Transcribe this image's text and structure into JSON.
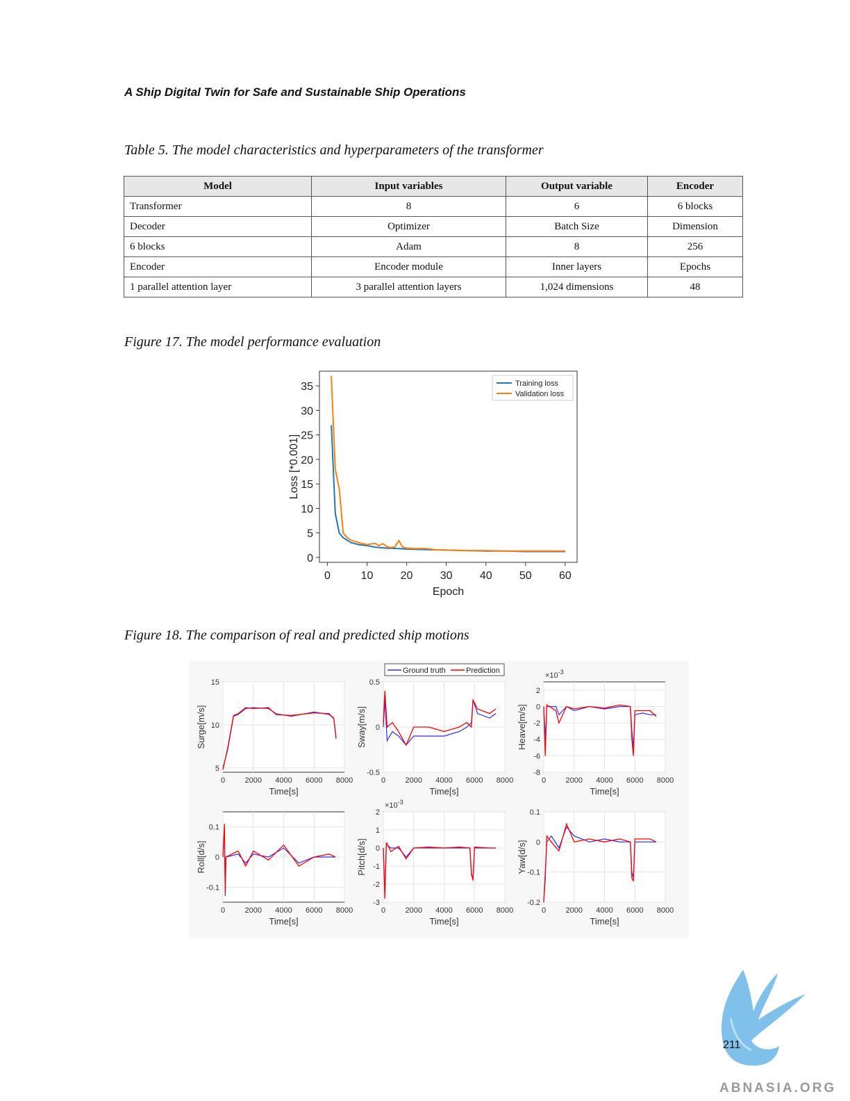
{
  "running_head": "A Ship Digital Twin for Safe and Sustainable Ship Operations",
  "table5": {
    "caption": "Table 5. The model characteristics and hyperparameters of the transformer",
    "headers": [
      "Model",
      "Input variables",
      "Output variable",
      "Encoder"
    ],
    "rows": [
      [
        "Transformer",
        "8",
        "6",
        "6 blocks"
      ],
      [
        "Decoder",
        "Optimizer",
        "Batch Size",
        "Dimension"
      ],
      [
        "6 blocks",
        "Adam",
        "8",
        "256"
      ],
      [
        "Encoder",
        "Encoder module",
        "Inner layers",
        "Epochs"
      ],
      [
        "1 parallel attention layer",
        "3 parallel attention layers",
        "1,024 dimensions",
        "48"
      ]
    ]
  },
  "figure17": {
    "caption": "Figure 17. The model performance evaluation"
  },
  "figure18": {
    "caption": "Figure 18. The comparison of real and predicted ship motions"
  },
  "page_number": "211",
  "watermark": "ABNASIA.ORG",
  "colors": {
    "training": "#1f77b4",
    "validation": "#ff7f0e",
    "ground_truth": "#2b2bff",
    "prediction": "#ff0000"
  },
  "chart_data": [
    {
      "type": "line",
      "xlabel": "Epoch",
      "ylabel": "Loss [*0.001]",
      "xlim": [
        -2,
        63
      ],
      "ylim": [
        -1,
        38
      ],
      "xticks": [
        0,
        10,
        20,
        30,
        40,
        50,
        60
      ],
      "yticks": [
        0,
        5,
        10,
        15,
        20,
        25,
        30,
        35
      ],
      "grid": false,
      "legend": "top-right",
      "series": [
        {
          "name": "Training loss",
          "x": [
            1,
            2,
            3,
            4,
            5,
            6,
            8,
            10,
            12,
            15,
            18,
            20,
            25,
            30,
            35,
            40,
            45,
            50,
            55,
            60
          ],
          "y": [
            27,
            9,
            5,
            4,
            3.5,
            3,
            2.6,
            2.4,
            2.1,
            1.9,
            1.8,
            1.7,
            1.6,
            1.5,
            1.4,
            1.3,
            1.3,
            1.2,
            1.2,
            1.2
          ]
        },
        {
          "name": "Validation loss",
          "x": [
            1,
            2,
            3,
            4,
            5,
            6,
            8,
            10,
            12,
            13,
            14,
            15,
            16,
            17,
            18,
            19,
            20,
            22,
            25,
            27,
            30,
            35,
            40,
            45,
            50,
            55,
            60
          ],
          "y": [
            37,
            18,
            14,
            5,
            4,
            3.5,
            3,
            2.6,
            2.9,
            2.4,
            2.8,
            2.2,
            2.0,
            2.1,
            3.4,
            2.1,
            1.9,
            1.8,
            1.8,
            1.6,
            1.5,
            1.4,
            1.4,
            1.3,
            1.3,
            1.3,
            1.3
          ]
        }
      ]
    },
    {
      "type": "line",
      "legend": "top",
      "legend_entries": [
        "Ground truth",
        "Prediction"
      ],
      "panels": [
        {
          "ylabel": "Surge[m/s]",
          "xlabel": "Time[s]",
          "xlim": [
            0,
            8000
          ],
          "ylim": [
            4.5,
            15
          ],
          "xticks": [
            "0",
            "2000",
            "4000",
            "6000",
            "8000"
          ],
          "yticks": [
            "5",
            "10",
            "15"
          ],
          "ytick_vals": [
            5,
            10,
            15
          ],
          "multiplier": "",
          "gt": [
            [
              0,
              5
            ],
            [
              300,
              7
            ],
            [
              700,
              11
            ],
            [
              1000,
              11.2
            ],
            [
              1500,
              11.9
            ],
            [
              2000,
              12
            ],
            [
              3000,
              11.9
            ],
            [
              3500,
              11.3
            ],
            [
              4500,
              11
            ],
            [
              6000,
              11.5
            ],
            [
              7000,
              11.2
            ],
            [
              7300,
              10.8
            ],
            [
              7450,
              8.5
            ]
          ],
          "pred": [
            [
              0,
              4.8
            ],
            [
              300,
              7.2
            ],
            [
              700,
              11.1
            ],
            [
              1000,
              11.3
            ],
            [
              1500,
              12
            ],
            [
              2000,
              11.9
            ],
            [
              3000,
              12
            ],
            [
              3500,
              11.2
            ],
            [
              4500,
              11.1
            ],
            [
              6000,
              11.4
            ],
            [
              7000,
              11.3
            ],
            [
              7300,
              10.7
            ],
            [
              7450,
              8.4
            ]
          ]
        },
        {
          "ylabel": "Sway[m/s]",
          "xlabel": "Time[s]",
          "xlim": [
            0,
            8000
          ],
          "ylim": [
            -0.5,
            0.5
          ],
          "xticks": [
            "0",
            "2000",
            "4000",
            "6000",
            "8000"
          ],
          "yticks": [
            "-0.5",
            "0",
            "0.5"
          ],
          "ytick_vals": [
            -0.5,
            0,
            0.5
          ],
          "multiplier": "",
          "gt": [
            [
              0,
              0
            ],
            [
              100,
              0.3
            ],
            [
              250,
              -0.15
            ],
            [
              600,
              -0.05
            ],
            [
              1000,
              -0.1
            ],
            [
              1500,
              -0.2
            ],
            [
              2000,
              -0.1
            ],
            [
              3000,
              -0.1
            ],
            [
              4000,
              -0.1
            ],
            [
              5000,
              -0.05
            ],
            [
              5500,
              0
            ],
            [
              5800,
              0.05
            ],
            [
              5900,
              0.3
            ],
            [
              6200,
              0.15
            ],
            [
              7000,
              0.1
            ],
            [
              7400,
              0.15
            ]
          ],
          "pred": [
            [
              0,
              0.05
            ],
            [
              100,
              0.4
            ],
            [
              250,
              0
            ],
            [
              600,
              0.05
            ],
            [
              1000,
              -0.05
            ],
            [
              1500,
              -0.2
            ],
            [
              2000,
              0
            ],
            [
              3000,
              0
            ],
            [
              4000,
              -0.05
            ],
            [
              5000,
              0
            ],
            [
              5500,
              0.05
            ],
            [
              5800,
              0
            ],
            [
              5900,
              0.3
            ],
            [
              6200,
              0.2
            ],
            [
              7000,
              0.15
            ],
            [
              7400,
              0.2
            ]
          ]
        },
        {
          "ylabel": "Heave[m/s]",
          "xlabel": "Time[s]",
          "xlim": [
            0,
            8000
          ],
          "ylim": [
            -8,
            3
          ],
          "xticks": [
            "0",
            "2000",
            "4000",
            "6000",
            "8000"
          ],
          "yticks": [
            "-8",
            "-6",
            "-4",
            "-2",
            "0",
            "2"
          ],
          "ytick_vals": [
            -8,
            -6,
            -4,
            -2,
            0,
            2
          ],
          "multiplier": "10-3",
          "gt": [
            [
              0,
              0
            ],
            [
              100,
              -4
            ],
            [
              200,
              0
            ],
            [
              800,
              0
            ],
            [
              1000,
              -1
            ],
            [
              1500,
              0
            ],
            [
              2000,
              -0.5
            ],
            [
              3000,
              0
            ],
            [
              4000,
              -0.3
            ],
            [
              5000,
              0
            ],
            [
              5700,
              0
            ],
            [
              5800,
              -3
            ],
            [
              5900,
              -5
            ],
            [
              6000,
              -1
            ],
            [
              6500,
              -0.8
            ],
            [
              7000,
              -1
            ],
            [
              7400,
              -1
            ]
          ],
          "pred": [
            [
              0,
              0
            ],
            [
              100,
              -6
            ],
            [
              200,
              0.2
            ],
            [
              800,
              -0.5
            ],
            [
              1000,
              -2
            ],
            [
              1500,
              0
            ],
            [
              2000,
              -0.3
            ],
            [
              3000,
              0
            ],
            [
              4000,
              -0.2
            ],
            [
              5000,
              0.2
            ],
            [
              5700,
              0
            ],
            [
              5800,
              -4
            ],
            [
              5900,
              -6
            ],
            [
              6000,
              -0.5
            ],
            [
              6500,
              -0.5
            ],
            [
              7000,
              -0.5
            ],
            [
              7400,
              -1.2
            ]
          ]
        },
        {
          "ylabel": "Roll[d/s]",
          "xlabel": "Time[s]",
          "xlim": [
            0,
            8000
          ],
          "ylim": [
            -0.15,
            0.15
          ],
          "xticks": [
            "0",
            "2000",
            "4000",
            "6000",
            "8000"
          ],
          "yticks": [
            "-0.1",
            "0",
            "0.1"
          ],
          "ytick_vals": [
            -0.1,
            0,
            0.1
          ],
          "multiplier": "",
          "gt": [
            [
              0,
              0
            ],
            [
              100,
              0.1
            ],
            [
              150,
              -0.13
            ],
            [
              200,
              0
            ],
            [
              1000,
              0.01
            ],
            [
              1500,
              -0.02
            ],
            [
              2000,
              0.01
            ],
            [
              3000,
              0
            ],
            [
              4000,
              0.03
            ],
            [
              5000,
              -0.02
            ],
            [
              6000,
              0
            ],
            [
              7000,
              0
            ],
            [
              7400,
              0
            ]
          ],
          "pred": [
            [
              0,
              0
            ],
            [
              100,
              0.11
            ],
            [
              150,
              -0.12
            ],
            [
              200,
              0
            ],
            [
              1000,
              0.02
            ],
            [
              1500,
              -0.03
            ],
            [
              2000,
              0.02
            ],
            [
              3000,
              -0.01
            ],
            [
              4000,
              0.04
            ],
            [
              5000,
              -0.03
            ],
            [
              6000,
              0
            ],
            [
              7000,
              0.01
            ],
            [
              7400,
              0
            ]
          ]
        },
        {
          "ylabel": "Pitch[d/s]",
          "xlabel": "Time[s]",
          "xlim": [
            0,
            8000
          ],
          "ylim": [
            -3,
            2
          ],
          "xticks": [
            "0",
            "2000",
            "4000",
            "6000",
            "8000"
          ],
          "yticks": [
            "-3",
            "-2",
            "-1",
            "0",
            "1",
            "2"
          ],
          "ytick_vals": [
            -3,
            -2,
            -1,
            0,
            1,
            2
          ],
          "multiplier": "10-3",
          "gt": [
            [
              0,
              0
            ],
            [
              100,
              -2.5
            ],
            [
              200,
              0.2
            ],
            [
              500,
              0
            ],
            [
              1000,
              0
            ],
            [
              1500,
              -0.5
            ],
            [
              2000,
              0
            ],
            [
              3000,
              0
            ],
            [
              4000,
              0
            ],
            [
              5000,
              0
            ],
            [
              5700,
              0
            ],
            [
              5800,
              -1.5
            ],
            [
              5900,
              -1.7
            ],
            [
              6000,
              0
            ],
            [
              7000,
              0
            ],
            [
              7400,
              0
            ]
          ],
          "pred": [
            [
              0,
              0
            ],
            [
              100,
              -2.8
            ],
            [
              200,
              0.3
            ],
            [
              500,
              -0.2
            ],
            [
              1000,
              0.1
            ],
            [
              1500,
              -0.6
            ],
            [
              2000,
              0
            ],
            [
              3000,
              0.05
            ],
            [
              4000,
              0
            ],
            [
              5000,
              0.05
            ],
            [
              5700,
              0
            ],
            [
              5800,
              -1.4
            ],
            [
              5900,
              -1.8
            ],
            [
              6000,
              0.05
            ],
            [
              7000,
              0
            ],
            [
              7400,
              0
            ]
          ]
        },
        {
          "ylabel": "Yaw[d/s]",
          "xlabel": "Time[s]",
          "xlim": [
            0,
            8000
          ],
          "ylim": [
            -0.2,
            0.1
          ],
          "xticks": [
            "0",
            "2000",
            "4000",
            "6000",
            "8000"
          ],
          "yticks": [
            "-0.2",
            "-0.1",
            "0",
            "0.1"
          ],
          "ytick_vals": [
            -0.2,
            -0.1,
            0,
            0.1
          ],
          "multiplier": "",
          "gt": [
            [
              0,
              -0.2
            ],
            [
              100,
              -0.1
            ],
            [
              200,
              0
            ],
            [
              500,
              0.02
            ],
            [
              1000,
              -0.02
            ],
            [
              1500,
              0.05
            ],
            [
              2000,
              0.02
            ],
            [
              3000,
              0
            ],
            [
              4000,
              0.01
            ],
            [
              5000,
              0
            ],
            [
              5700,
              0
            ],
            [
              5800,
              -0.1
            ],
            [
              5900,
              -0.12
            ],
            [
              6000,
              0
            ],
            [
              7000,
              0
            ],
            [
              7400,
              0
            ]
          ],
          "pred": [
            [
              0,
              -0.2
            ],
            [
              100,
              -0.12
            ],
            [
              200,
              0.02
            ],
            [
              500,
              0
            ],
            [
              1000,
              -0.03
            ],
            [
              1500,
              0.06
            ],
            [
              2000,
              0
            ],
            [
              3000,
              0.01
            ],
            [
              4000,
              0
            ],
            [
              5000,
              0.01
            ],
            [
              5700,
              0
            ],
            [
              5800,
              -0.12
            ],
            [
              5900,
              -0.13
            ],
            [
              6000,
              0.01
            ],
            [
              7000,
              0.01
            ],
            [
              7400,
              0
            ]
          ]
        }
      ]
    }
  ]
}
